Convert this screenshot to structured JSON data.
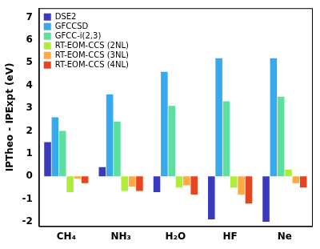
{
  "chart_data": {
    "type": "bar",
    "y_label": "IPTheo - IPExpt (eV)",
    "categories": [
      "CH₄",
      "NH₃",
      "H₂O",
      "HF",
      "Ne"
    ],
    "series": [
      {
        "name": "DSE2",
        "color": "#3a3abf",
        "values": [
          1.5,
          0.4,
          -0.7,
          -1.9,
          -2.0
        ]
      },
      {
        "name": "GFCCSD",
        "color": "#36aaec",
        "values": [
          2.6,
          3.6,
          4.6,
          5.2,
          5.2
        ]
      },
      {
        "name": "GFCC-i(2,3)",
        "color": "#5ce0a0",
        "values": [
          2.0,
          2.4,
          3.1,
          3.3,
          3.5
        ]
      },
      {
        "name": "RT-EOM-CCS (2NL)",
        "color": "#b0ec3a",
        "values": [
          -0.7,
          -0.65,
          -0.5,
          -0.5,
          0.3
        ]
      },
      {
        "name": "RT-EOM-CCS (3NL)",
        "color": "#ffaa40",
        "values": [
          -0.1,
          -0.45,
          -0.4,
          -0.8,
          -0.3
        ]
      },
      {
        "name": "RT-EOM-CCS (4NL)",
        "color": "#e8441e",
        "values": [
          -0.3,
          -0.65,
          -0.8,
          -1.2,
          -0.5
        ]
      }
    ],
    "ylim": [
      -2.2,
      7.4
    ],
    "yticks": [
      -2,
      -1,
      0,
      1,
      2,
      3,
      4,
      5,
      6,
      7
    ],
    "grid": false,
    "legend": "top-left"
  }
}
